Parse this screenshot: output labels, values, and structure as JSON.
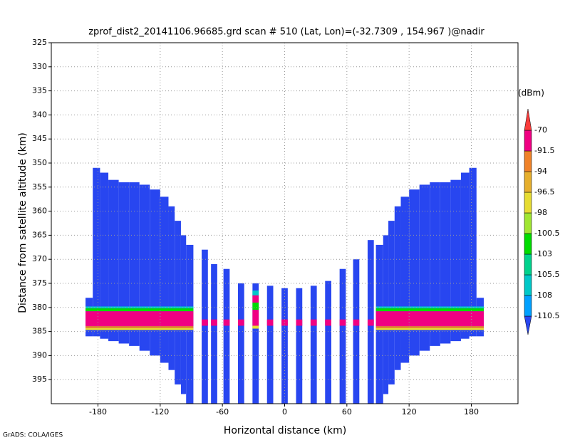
{
  "chart_data": {
    "type": "curtain",
    "title": "zprof_dist2_20141106.96685.grd  scan # 510  (Lat, Lon)=(-32.7309 , 154.967 )@nadir",
    "x_label": "Horizontal distance (km)",
    "y_label": "Distance from satellite altitude (km)",
    "footer": "GrADS: COLA/IGES",
    "xlim": [
      -225,
      225
    ],
    "ylim": [
      325,
      400
    ],
    "y_reversed": true,
    "grid": true,
    "xticks": [
      -180,
      -120,
      -60,
      0,
      60,
      120,
      180
    ],
    "yticks": [
      325,
      330,
      335,
      340,
      345,
      350,
      355,
      360,
      365,
      370,
      375,
      380,
      385,
      390,
      395
    ],
    "colorbar": {
      "label": "(dBm)",
      "levels": [
        -110.5,
        -108,
        -105.5,
        -103,
        -100.5,
        -98,
        -96.5,
        -94,
        -91.5,
        -70
      ],
      "colors": [
        "#2846f0",
        "#00a0ff",
        "#00c8c8",
        "#00d28c",
        "#00dc00",
        "#a0e632",
        "#e6dc32",
        "#e6af2d",
        "#f08228",
        "#f00082",
        "#fa3c3c"
      ]
    },
    "layers": [
      {
        "value": -115,
        "rects": [
          [
            -192,
            -185,
            378,
            386
          ],
          [
            -185,
            -178,
            351,
            386
          ],
          [
            -178,
            -170,
            352,
            386.5
          ],
          [
            -170,
            -160,
            353.5,
            387
          ],
          [
            -160,
            -150,
            354,
            387.5
          ],
          [
            -150,
            -140,
            354,
            388
          ],
          [
            -140,
            -130,
            354.5,
            389
          ],
          [
            -130,
            -120,
            355.5,
            390
          ],
          [
            -120,
            -112,
            357,
            391.5
          ],
          [
            -112,
            -106,
            359,
            393
          ],
          [
            -106,
            -100,
            362,
            396
          ],
          [
            -100,
            -95,
            365,
            398
          ],
          [
            -95,
            -88,
            367,
            400
          ],
          [
            185,
            192,
            378,
            386
          ],
          [
            178,
            185,
            351,
            386
          ],
          [
            170,
            178,
            352,
            386.5
          ],
          [
            160,
            170,
            353.5,
            387
          ],
          [
            150,
            160,
            354,
            387.5
          ],
          [
            140,
            150,
            354,
            388
          ],
          [
            130,
            140,
            354.5,
            389
          ],
          [
            120,
            130,
            355.5,
            390
          ],
          [
            112,
            120,
            357,
            391.5
          ],
          [
            106,
            112,
            359,
            393
          ],
          [
            100,
            106,
            362,
            396
          ],
          [
            95,
            100,
            365,
            398
          ],
          [
            88,
            95,
            367,
            400
          ],
          [
            -80,
            -74,
            368,
            400
          ],
          [
            -71,
            -65,
            371,
            400
          ],
          [
            -59,
            -53,
            372,
            400
          ],
          [
            -45,
            -39,
            375,
            400
          ],
          [
            -31,
            -25,
            375,
            400
          ],
          [
            -17,
            -11,
            375.5,
            400
          ],
          [
            -3,
            3,
            376,
            400
          ],
          [
            11,
            17,
            376,
            400
          ],
          [
            25,
            31,
            375.5,
            400
          ],
          [
            39,
            45,
            374.5,
            400
          ],
          [
            53,
            59,
            372,
            400
          ],
          [
            66,
            72,
            370,
            400
          ],
          [
            80,
            86,
            366,
            400
          ]
        ]
      },
      {
        "value": -107,
        "rects": [
          [
            -192,
            -88,
            379.8,
            380.2
          ],
          [
            88,
            192,
            379.8,
            380.2
          ],
          [
            -31,
            -25,
            376.5,
            377.5
          ]
        ]
      },
      {
        "value": -101,
        "rects": [
          [
            -192,
            -88,
            380.2,
            380.8
          ],
          [
            88,
            192,
            380.2,
            380.8
          ],
          [
            -31,
            -25,
            379,
            380.5
          ]
        ]
      },
      {
        "value": -85,
        "rects": [
          [
            -192,
            -88,
            380.8,
            383.9
          ],
          [
            88,
            192,
            380.8,
            383.9
          ],
          [
            -31,
            -25,
            377.5,
            379
          ],
          [
            -31,
            -25,
            380.5,
            383.8
          ],
          [
            -80,
            -74,
            382.5,
            383.8
          ],
          [
            -71,
            -65,
            382.5,
            383.8
          ],
          [
            -59,
            -53,
            382.5,
            383.8
          ],
          [
            -45,
            -39,
            382.5,
            383.8
          ],
          [
            -17,
            -11,
            382.5,
            383.8
          ],
          [
            -3,
            3,
            382.5,
            383.8
          ],
          [
            11,
            17,
            382.5,
            383.8
          ],
          [
            25,
            31,
            382.5,
            383.8
          ],
          [
            39,
            45,
            382.5,
            383.8
          ],
          [
            53,
            59,
            382.5,
            383.8
          ],
          [
            66,
            72,
            382.5,
            383.8
          ],
          [
            80,
            86,
            382.5,
            383.8
          ]
        ]
      },
      {
        "value": -93,
        "rects": [
          [
            -192,
            -88,
            383.9,
            384.3
          ],
          [
            88,
            192,
            383.9,
            384.3
          ]
        ]
      },
      {
        "value": -97,
        "rects": [
          [
            -192,
            -88,
            384.3,
            384.7
          ],
          [
            88,
            192,
            384.3,
            384.7
          ],
          [
            -31,
            -25,
            383.8,
            384.4
          ]
        ]
      }
    ]
  }
}
